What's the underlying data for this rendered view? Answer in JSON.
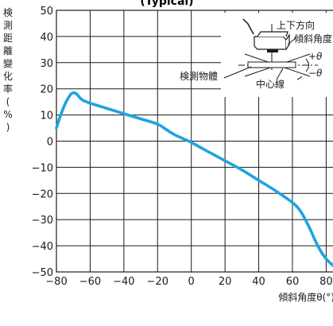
{
  "chart_data": {
    "type": "line",
    "title": "(Typical)",
    "xlabel": "傾斜角度θ(°)",
    "ylabel": "検測距離變化率(%)",
    "xlim": [
      -80,
      85
    ],
    "ylim": [
      -50,
      50
    ],
    "x_ticks": [
      "−80",
      "−60",
      "−40",
      "−20",
      "0",
      "20",
      "40",
      "60",
      "80"
    ],
    "y_ticks": [
      "50",
      "40",
      "30",
      "20",
      "10",
      "0",
      "−10",
      "−20",
      "−30",
      "−40",
      "−50"
    ],
    "grid": true,
    "series": [
      {
        "color": "#1fa3e0",
        "x": [
          -80,
          -78,
          -75,
          -72,
          -70,
          -68,
          -66,
          -64,
          -62,
          -60,
          -55,
          -50,
          -40,
          -30,
          -20,
          -15,
          -10,
          -5,
          0,
          10,
          20,
          30,
          40,
          50,
          60,
          65,
          70,
          75,
          80,
          85
        ],
        "y": [
          5,
          9,
          14,
          17.5,
          18.5,
          18,
          16.5,
          15.5,
          15,
          14.5,
          13.5,
          12.5,
          10.5,
          8.5,
          6.5,
          4.5,
          2.5,
          1,
          -0.5,
          -4,
          -7.5,
          -11,
          -15,
          -19,
          -23.5,
          -27,
          -33,
          -40,
          -45,
          -48
        ]
      }
    ],
    "annotations": {
      "up_down": "上下方向",
      "tilt_angle": "傾斜角度",
      "plus_theta": "+θ",
      "minus_theta": "−θ",
      "object": "検測物體",
      "center_line": "中心線"
    }
  }
}
